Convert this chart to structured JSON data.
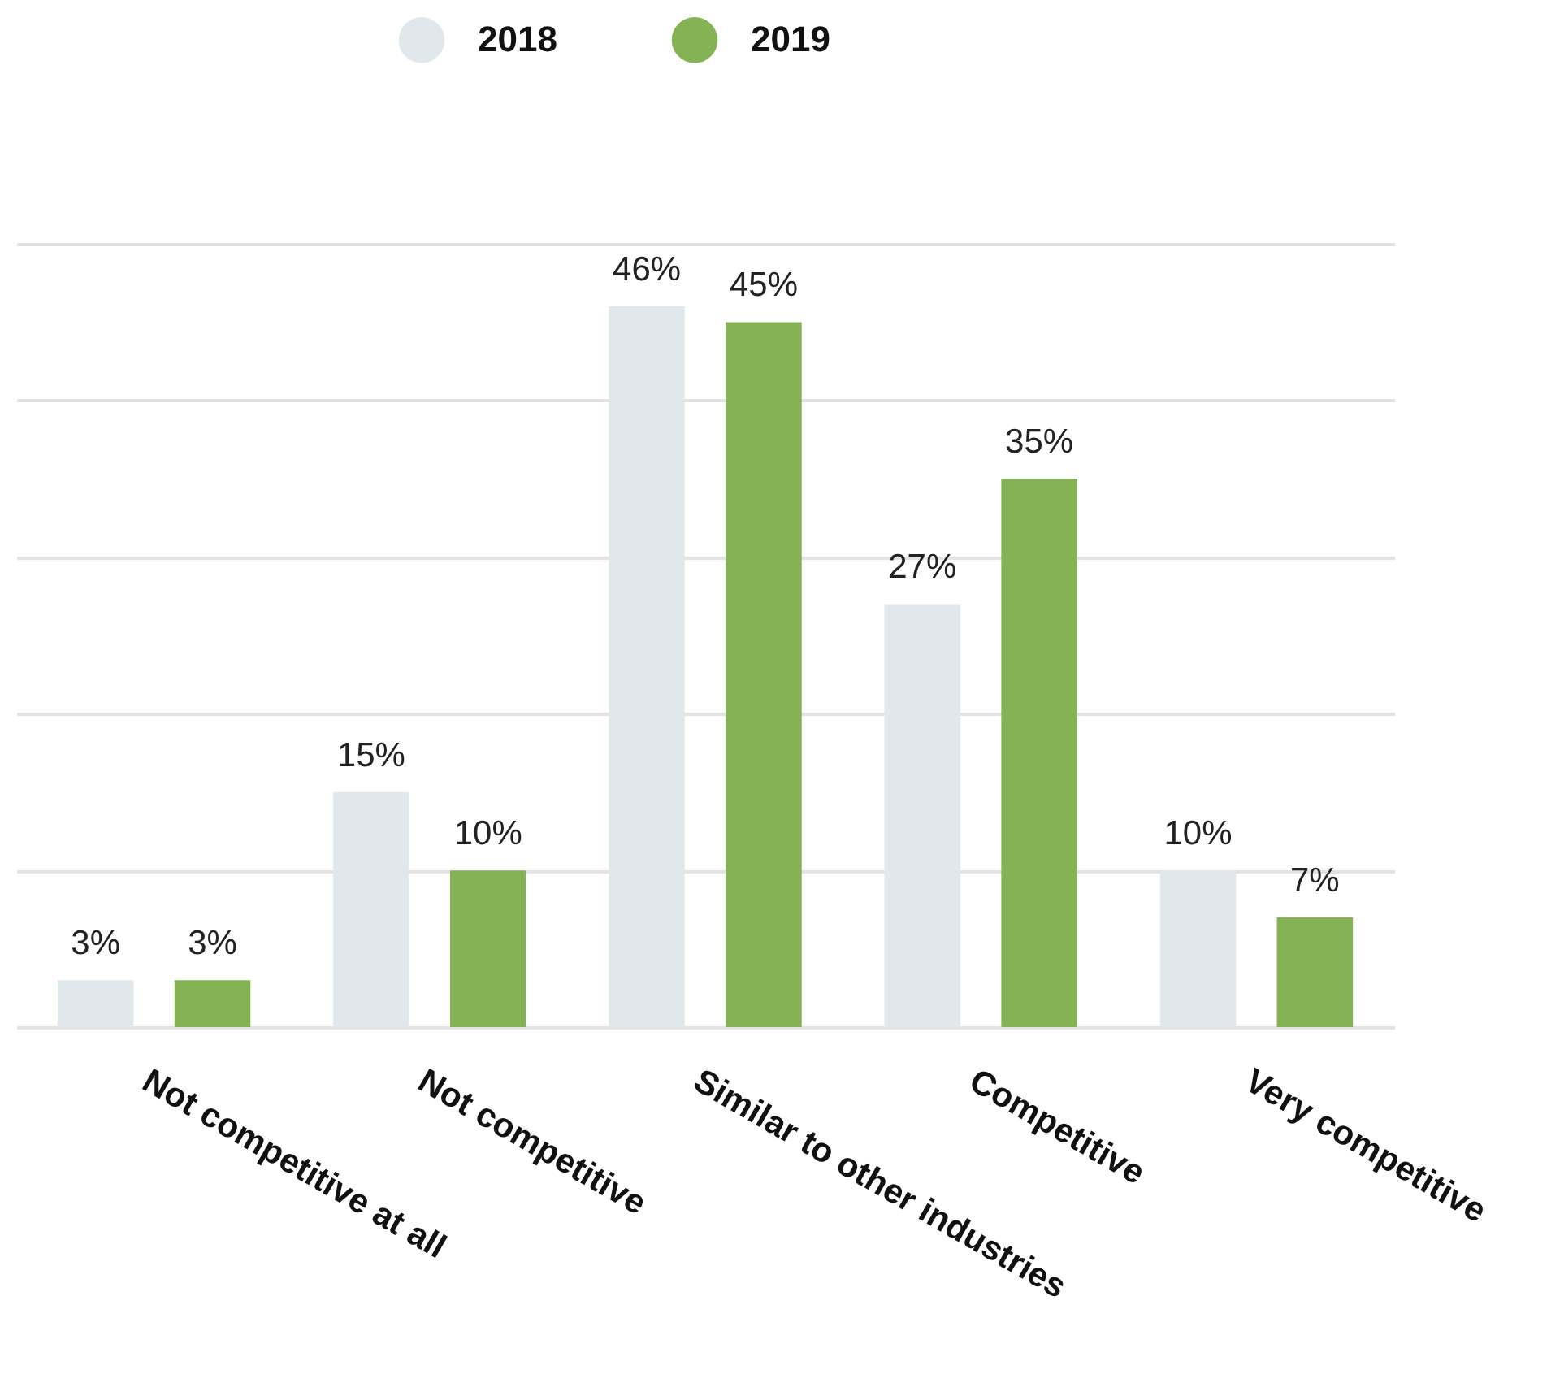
{
  "chart_data": {
    "type": "bar",
    "categories": [
      "Not competitive at all",
      "Not competitive",
      "Similar to other industries",
      "Competitive",
      "Very competitive"
    ],
    "series": [
      {
        "name": "2018",
        "color": "#e1e8ec",
        "values": [
          3,
          15,
          46,
          27,
          10
        ],
        "value_labels": [
          "3%",
          "15%",
          "46%",
          "27%",
          "10%"
        ]
      },
      {
        "name": "2019",
        "color": "#84b254",
        "values": [
          3,
          10,
          45,
          35,
          7
        ],
        "value_labels": [
          "3%",
          "10%",
          "45%",
          "35%",
          "7%"
        ]
      }
    ],
    "tick_labels": "x",
    "grid": "y",
    "legend": "top"
  }
}
